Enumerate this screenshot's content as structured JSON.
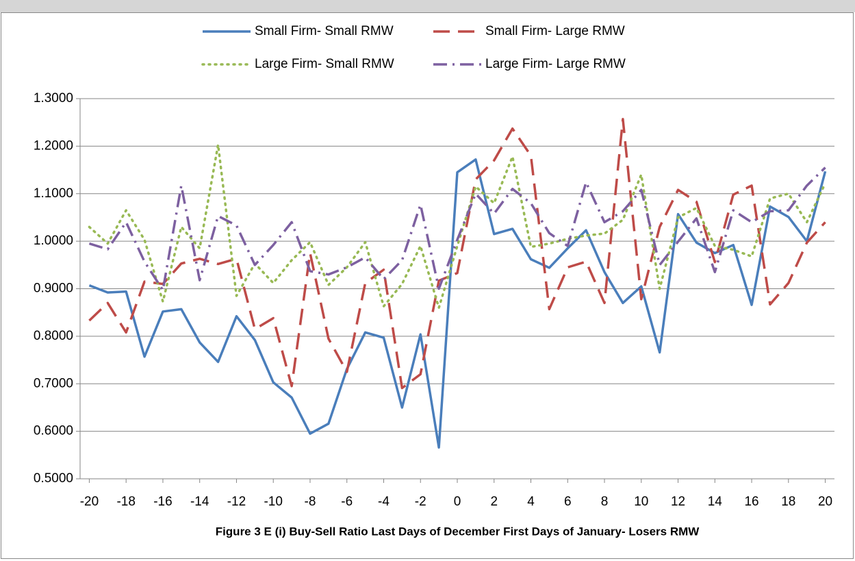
{
  "chart_data": {
    "type": "line",
    "title": "Figure 3 E (i)  Buy-Sell Ratio Last Days of December First Days of January- Losers RMW",
    "x": [
      -20,
      -19,
      -18,
      -17,
      -16,
      -15,
      -14,
      -13,
      -12,
      -11,
      -10,
      -9,
      -8,
      -7,
      -6,
      -5,
      -4,
      -3,
      -2,
      -1,
      0,
      1,
      2,
      3,
      4,
      5,
      6,
      7,
      8,
      9,
      10,
      11,
      12,
      13,
      14,
      15,
      16,
      17,
      18,
      19,
      20
    ],
    "series": [
      {
        "name": "Small Firm- Small RMW",
        "color": "#4a7ebb",
        "dash": "solid",
        "values": [
          0.907,
          0.892,
          0.894,
          0.757,
          0.852,
          0.857,
          0.787,
          0.746,
          0.842,
          0.792,
          0.703,
          0.671,
          0.595,
          0.616,
          0.731,
          0.808,
          0.797,
          0.65,
          0.804,
          0.566,
          1.145,
          1.172,
          1.015,
          1.026,
          0.962,
          0.944,
          0.985,
          1.023,
          0.935,
          0.87,
          0.905,
          0.766,
          1.057,
          0.997,
          0.975,
          0.992,
          0.866,
          1.073,
          1.051,
          1.0,
          1.147
        ]
      },
      {
        "name": "Small Firm- Large RMW",
        "color": "#be4b48",
        "dash": "dash",
        "values": [
          0.833,
          0.87,
          0.808,
          0.915,
          0.91,
          0.953,
          0.963,
          0.952,
          0.963,
          0.815,
          0.838,
          0.695,
          0.975,
          0.795,
          0.725,
          0.912,
          0.94,
          0.691,
          0.72,
          0.917,
          0.933,
          1.13,
          1.17,
          1.237,
          1.18,
          0.857,
          0.945,
          0.957,
          0.87,
          1.257,
          0.878,
          1.03,
          1.108,
          1.083,
          0.956,
          1.098,
          1.117,
          0.867,
          0.912,
          0.997,
          1.04
        ]
      },
      {
        "name": "Large Firm- Small RMW",
        "color": "#98b954",
        "dash": "dot",
        "values": [
          1.03,
          0.995,
          1.065,
          1.003,
          0.873,
          1.03,
          0.985,
          1.203,
          0.885,
          0.953,
          0.912,
          0.96,
          0.998,
          0.908,
          0.945,
          0.998,
          0.863,
          0.91,
          0.99,
          0.86,
          0.99,
          1.115,
          1.08,
          1.178,
          0.988,
          0.995,
          1.005,
          1.012,
          1.016,
          1.045,
          1.14,
          0.9,
          1.05,
          1.07,
          0.99,
          0.982,
          0.968,
          1.09,
          1.1,
          1.04,
          1.122
        ]
      },
      {
        "name": "Large Firm- Large RMW",
        "color": "#7d60a0",
        "dash": "dashdot",
        "values": [
          0.995,
          0.983,
          1.04,
          0.957,
          0.897,
          1.117,
          0.918,
          1.053,
          1.033,
          0.95,
          0.992,
          1.04,
          0.937,
          0.93,
          0.945,
          0.966,
          0.92,
          0.96,
          1.077,
          0.9,
          1.003,
          1.1,
          1.058,
          1.11,
          1.08,
          1.017,
          0.99,
          1.124,
          1.04,
          1.063,
          1.108,
          0.95,
          0.999,
          1.048,
          0.935,
          1.065,
          1.04,
          1.063,
          1.065,
          1.117,
          1.155
        ]
      }
    ],
    "xlim": [
      -20.5,
      20.5
    ],
    "xticks": [
      -20,
      -18,
      -16,
      -14,
      -12,
      -10,
      -8,
      -6,
      -4,
      -2,
      0,
      2,
      4,
      6,
      8,
      10,
      12,
      14,
      16,
      18,
      20
    ],
    "ylim": [
      0.5,
      1.3
    ],
    "yticks": [
      {
        "value": 0.5,
        "label": "0.5000"
      },
      {
        "value": 0.6,
        "label": "0.6000"
      },
      {
        "value": 0.7,
        "label": "0.7000"
      },
      {
        "value": 0.8,
        "label": "0.8000"
      },
      {
        "value": 0.9,
        "label": "0.9000"
      },
      {
        "value": 1.0,
        "label": "1.0000"
      },
      {
        "value": 1.1,
        "label": "1.1000"
      },
      {
        "value": 1.2,
        "label": "1.2000"
      },
      {
        "value": 1.3,
        "label": "1.3000"
      }
    ],
    "grid": true,
    "legend": "top"
  }
}
